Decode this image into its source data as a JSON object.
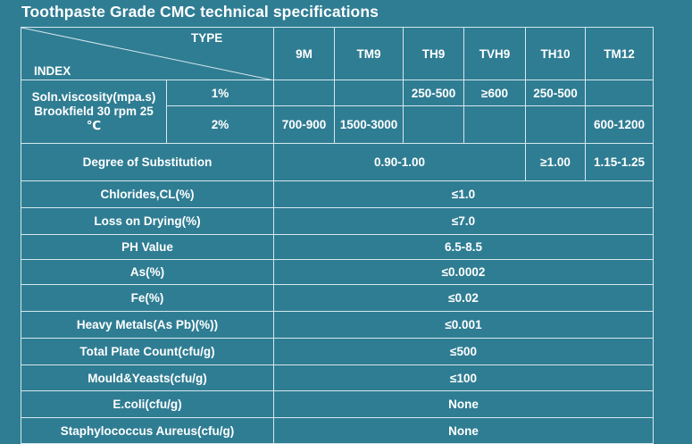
{
  "title": "Toothpaste Grade CMC technical specifications",
  "header": {
    "type_label": "TYPE",
    "index_label": "INDEX",
    "grades": [
      "9M",
      "TM9",
      "TH9",
      "TVH9",
      "TH10",
      "TM12"
    ]
  },
  "viscosity": {
    "label_line1": "Soln.viscosity(mpa.s)",
    "label_line2": "Brookfield 30 rpm 25",
    "label_line3": "℃",
    "row1": {
      "conc": "1%",
      "values": [
        "",
        "",
        "250-500",
        "≥600",
        "250-500",
        ""
      ]
    },
    "row2": {
      "conc": "2%",
      "values": [
        "700-900",
        "1500-3000",
        "",
        "",
        "",
        "600-1200"
      ]
    }
  },
  "substitution": {
    "label": "Degree of Substitution",
    "value_main": "0.90-1.00",
    "value_th10": "≥1.00",
    "value_tm12": "1.15-1.25"
  },
  "rows": [
    {
      "label": "Chlorides,CL(%)",
      "value": "≤1.0"
    },
    {
      "label": "Loss on Drying(%)",
      "value": "≤7.0"
    },
    {
      "label": "PH Value",
      "value": "6.5-8.5"
    },
    {
      "label": "As(%)",
      "value": "≤0.0002"
    },
    {
      "label": "Fe(%)",
      "value": "≤0.02"
    },
    {
      "label": "Heavy Metals(As Pb)(%))",
      "value": "≤0.001"
    },
    {
      "label": "Total Plate Count(cfu/g)",
      "value": "≤500"
    },
    {
      "label": "Mould&Yeasts(cfu/g)",
      "value": "≤100"
    },
    {
      "label": "E.coli(cfu/g)",
      "value": "None"
    },
    {
      "label": "Staphylococcus Aureus(cfu/g)",
      "value": "None"
    }
  ]
}
